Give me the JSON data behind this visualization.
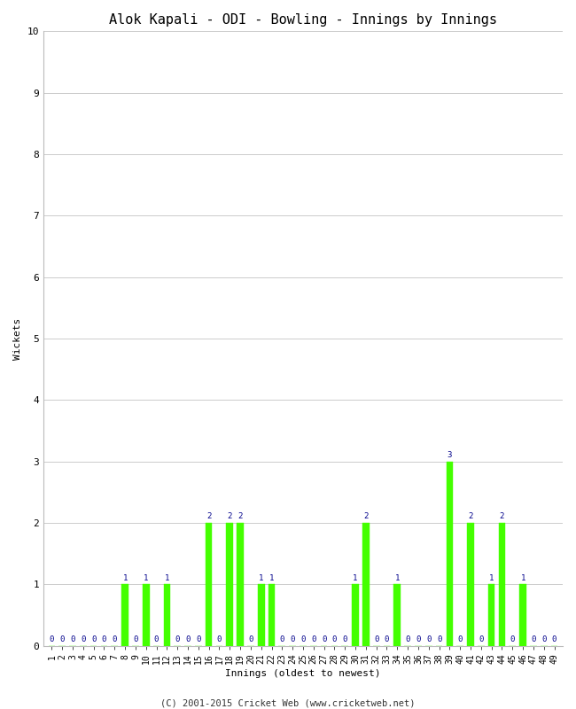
{
  "title": "Alok Kapali - ODI - Bowling - Innings by Innings",
  "xlabel": "Innings (oldest to newest)",
  "ylabel": "Wickets",
  "footnote": "(C) 2001-2015 Cricket Web (www.cricketweb.net)",
  "ylim": [
    0,
    10
  ],
  "yticks": [
    0,
    1,
    2,
    3,
    4,
    5,
    6,
    7,
    8,
    9,
    10
  ],
  "bar_color": "#44ff00",
  "bar_edge_color": "#44ff00",
  "annotation_color": "#00008B",
  "background_color": "#ffffff",
  "grid_color": "#cccccc",
  "innings": [
    1,
    2,
    3,
    4,
    5,
    6,
    7,
    8,
    9,
    10,
    11,
    12,
    13,
    14,
    15,
    16,
    17,
    18,
    19,
    20,
    21,
    22,
    23,
    24,
    25,
    26,
    27,
    28,
    29,
    30,
    31,
    32,
    33,
    34,
    35,
    36,
    37,
    38,
    39,
    40,
    41,
    42,
    43,
    44,
    45,
    46,
    47,
    48,
    49
  ],
  "wickets": [
    0,
    0,
    0,
    0,
    0,
    0,
    0,
    1,
    0,
    1,
    0,
    1,
    0,
    0,
    0,
    2,
    0,
    2,
    2,
    0,
    1,
    1,
    0,
    0,
    0,
    0,
    0,
    0,
    0,
    1,
    2,
    0,
    0,
    1,
    0,
    0,
    0,
    0,
    3,
    0,
    2,
    0,
    1,
    2,
    0,
    1,
    0,
    0,
    0
  ],
  "title_fontsize": 11,
  "axis_label_fontsize": 8,
  "tick_fontsize": 7,
  "annotation_fontsize": 6.5,
  "footnote_fontsize": 7.5,
  "bar_width": 0.65
}
